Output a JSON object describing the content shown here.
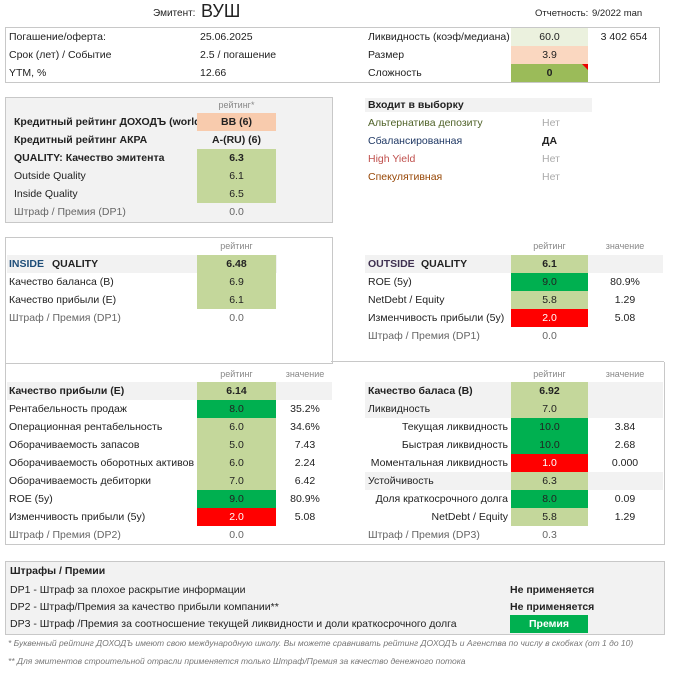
{
  "header": {
    "issuer_label": "Эмитент:",
    "issuer_name": "ВУШ",
    "report_label": "Отчетность:",
    "report_value": "9/2022 man"
  },
  "bond": [
    {
      "label": "Погашение/оферта:",
      "value": "25.06.2025"
    },
    {
      "label": "Срок (лет) / Событие",
      "value": "2.5 / погашение"
    },
    {
      "label": "YTM, %",
      "value": "12.66"
    }
  ],
  "market": [
    {
      "label": "Ликвидность (коэф/медиана)",
      "value": "60.0",
      "extra": "3 402 654"
    },
    {
      "label": "Размер",
      "value": "3.9"
    },
    {
      "label": "Сложность",
      "value": "0"
    }
  ],
  "rating": {
    "col_header": "рейтинг*",
    "rows": [
      {
        "label": "Кредитный рейтинг ДОХОДЪ (world):",
        "value": "BB (6)"
      },
      {
        "label": "Кредитный рейтинг АКРА",
        "value": "A-(RU) (6)"
      },
      {
        "label": "QUALITY: Качество эмитента",
        "value": "6.3"
      },
      {
        "label": "Outside Quality",
        "value": "6.1"
      },
      {
        "label": "Inside Quality",
        "value": "6.5"
      },
      {
        "label": "Штраф / Премия (DP1)",
        "value": "0.0"
      }
    ]
  },
  "selection": {
    "title": "Входит в выборку",
    "rows": [
      {
        "label": "Альтернатива депозиту",
        "value": "Нет"
      },
      {
        "label": "Сбалансированная",
        "value": "ДА"
      },
      {
        "label": "High Yield",
        "value": "Нет"
      },
      {
        "label": "Спекулятивная",
        "value": "Нет"
      }
    ]
  },
  "inside": {
    "col_rating": "рейтинг",
    "title_a": "INSIDE",
    "title_b": " QUALITY",
    "score": "6.48",
    "rows": [
      {
        "label": "Качество баланса (B)",
        "value": "6.9"
      },
      {
        "label": "Качество прибыли (E)",
        "value": "6.1"
      },
      {
        "label": "Штраф / Премия (DP1)",
        "value": "0.0"
      }
    ]
  },
  "outside": {
    "col_rating": "рейтинг",
    "col_value": "значение",
    "title_a": "OUTSIDE",
    "title_b": " QUALITY",
    "score": "6.1",
    "rows": [
      {
        "label": "ROE (5y)",
        "value": "9.0",
        "extra": "80.9%"
      },
      {
        "label": "NetDebt / Equity",
        "value": "5.8",
        "extra": "1.29"
      },
      {
        "label": "Изменчивость прибыли (5y)",
        "value": "2.0",
        "extra": "5.08"
      },
      {
        "label": "Штраф / Премия (DP1)",
        "value": "0.0",
        "extra": ""
      }
    ]
  },
  "earnings": {
    "col_rating": "рейтинг",
    "col_value": "значение",
    "title": "Качество прибыли (E)",
    "score": "6.14",
    "rows": [
      {
        "label": "Рентабельность продаж",
        "value": "8.0",
        "extra": "35.2%"
      },
      {
        "label": "Операционная рентабельность",
        "value": "6.0",
        "extra": "34.6%"
      },
      {
        "label": "Оборачиваемость запасов",
        "value": "5.0",
        "extra": "7.43"
      },
      {
        "label": "Оборачиваемость оборотных активов",
        "value": "6.0",
        "extra": "2.24"
      },
      {
        "label": "Оборачиваемость дебиторки",
        "value": "7.0",
        "extra": "6.42"
      },
      {
        "label": "ROE (5y)",
        "value": "9.0",
        "extra": "80.9%"
      },
      {
        "label": "Изменчивость прибыли (5y)",
        "value": "2.0",
        "extra": "5.08"
      },
      {
        "label": "Штраф / Премия (DP2)",
        "value": "0.0",
        "extra": ""
      }
    ]
  },
  "balance": {
    "col_rating": "рейтинг",
    "col_value": "значение",
    "title": "Качество баласа (B)",
    "score": "6.92",
    "rows": [
      {
        "label": "Ликвидность",
        "value": "7.0",
        "extra": ""
      },
      {
        "label": "Текущая ликвидность",
        "value": "10.0",
        "extra": "3.84"
      },
      {
        "label": "Быстрая ликвидность",
        "value": "10.0",
        "extra": "2.68"
      },
      {
        "label": "Моментальная ликвидность",
        "value": "1.0",
        "extra": "0.000"
      },
      {
        "label": "Устойчивость",
        "value": "6.3",
        "extra": ""
      },
      {
        "label": "Доля краткосрочного долга",
        "value": "8.0",
        "extra": "0.09"
      },
      {
        "label": "NetDebt / Equity",
        "value": "5.8",
        "extra": "1.29"
      },
      {
        "label": "Штраф / Премия (DP3)",
        "value": "0.3",
        "extra": ""
      }
    ]
  },
  "penalties": {
    "title": "Штрафы / Премии",
    "rows": [
      {
        "label": "DP1 - Штраф за плохое раскрытие информации",
        "value": "Не применяется"
      },
      {
        "label": "DP2 - Штраф/Премия за качество прибыли компании**",
        "value": "Не применяется"
      },
      {
        "label": "DP3 - Штраф /Премия за соотносшение текущей ликвидности и доли краткосрочного долга",
        "value": "Премия"
      }
    ]
  },
  "footnotes": [
    "* Буквенный рейтинг ДОХОДЪ имеют свою международную школу. Вы можете сравнивать рейтинг ДОХОДЪ и Агенства по числу в скобках (от 1 до 10)",
    "** Для эмитентов строительной отрасли применяется только Штраф/Премия за качество денежного потока"
  ]
}
